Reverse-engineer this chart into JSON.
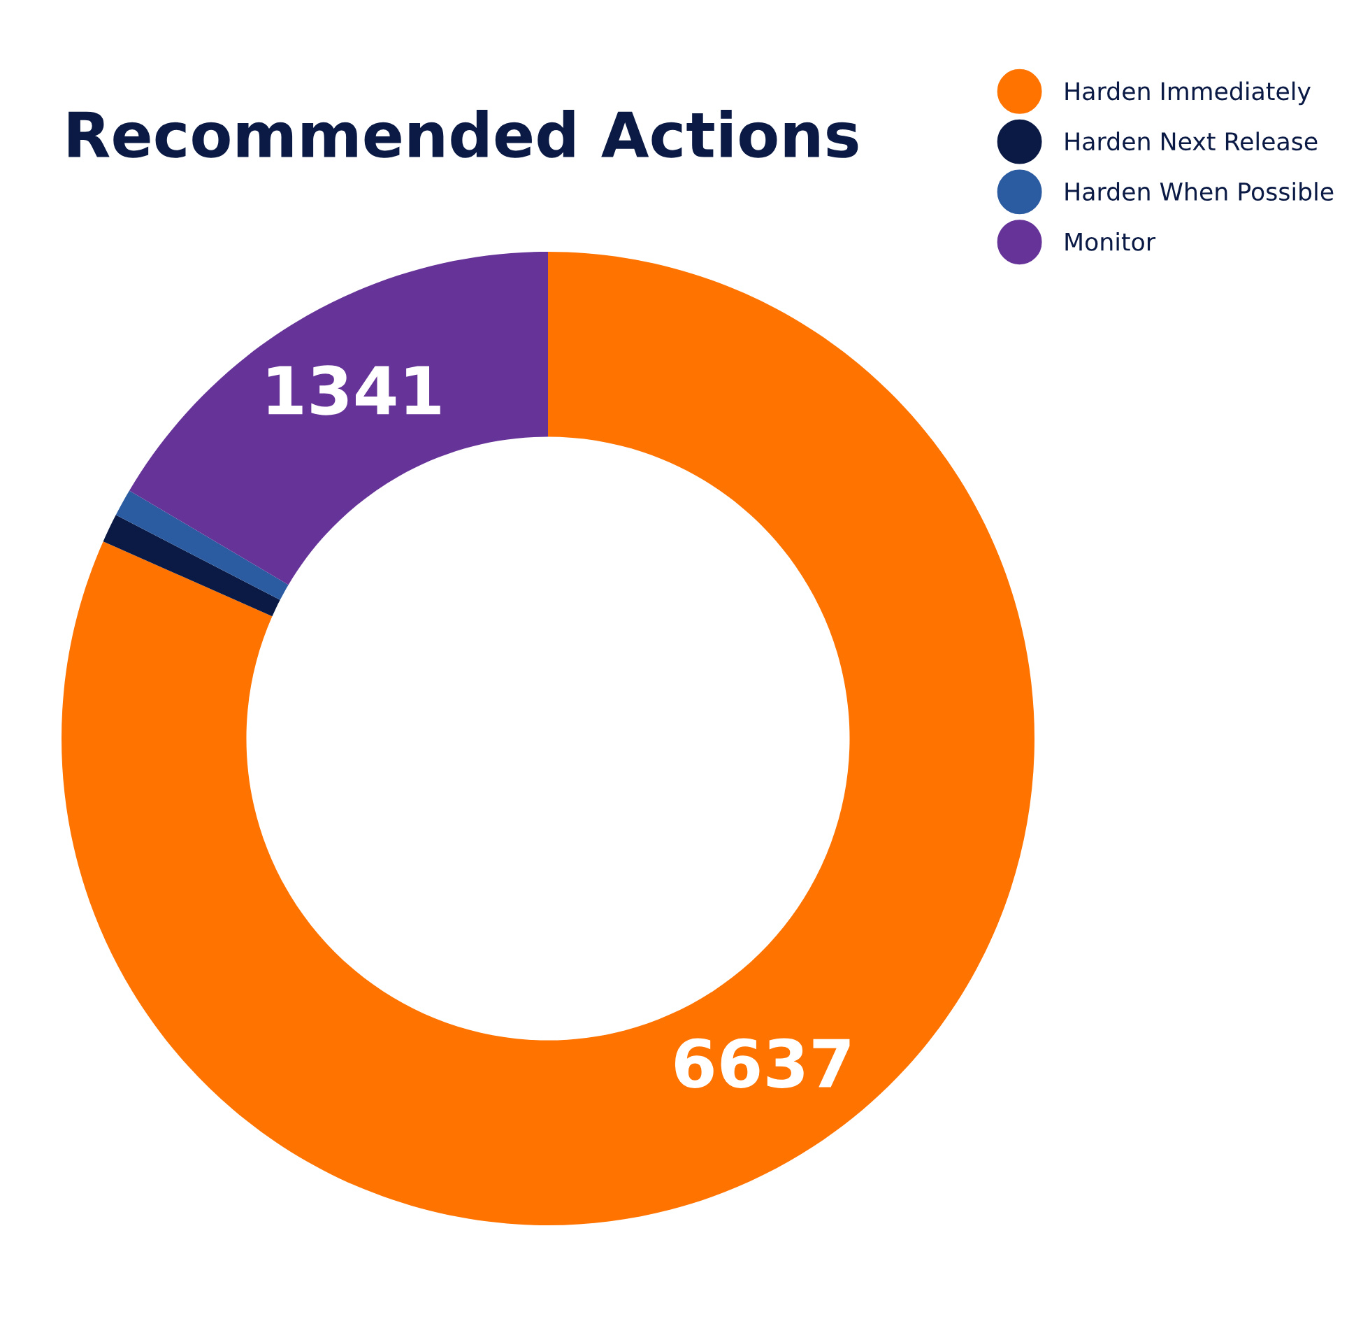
{
  "chart_data": {
    "type": "donut",
    "title": "Recommended Actions",
    "categories": [
      "Harden Immediately",
      "Harden Next Release",
      "Harden When Possible",
      "Monitor"
    ],
    "values": [
      6637,
      78,
      74,
      1341
    ],
    "colors": [
      "#ff7300",
      "#0a1a45",
      "#2b5ba0",
      "#663399"
    ],
    "value_labels": [
      "6637",
      null,
      null,
      "1341"
    ],
    "legend": "top right"
  }
}
